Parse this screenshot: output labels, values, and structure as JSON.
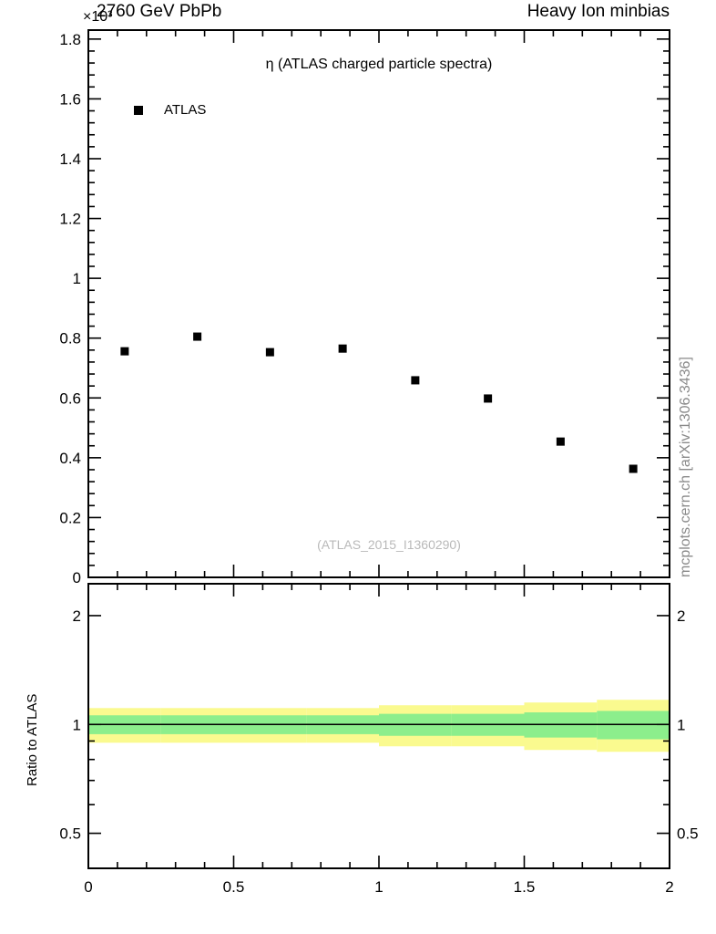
{
  "header": {
    "y_multiplier": "×10³",
    "title_left": "2760 GeV PbPb",
    "title_right": "Heavy Ion minbias"
  },
  "main_plot": {
    "inner_title": "η (ATLAS charged particle spectra)",
    "legend_label": "ATLAS",
    "watermark": "(ATLAS_2015_I1360290)"
  },
  "ratio_plot": {
    "ylabel": "Ratio to ATLAS"
  },
  "side_text": "mcplots.cern.ch [arXiv:1306.3436]",
  "colors": {
    "marker": "#000000",
    "yellow_band": "#fafa8f",
    "green_band": "#8cee8c",
    "frame": "#000000",
    "watermark": "#b9b9b9",
    "side_text": "#8a8a8a"
  },
  "chart_data": [
    {
      "type": "scatter",
      "title": "η (ATLAS charged particle spectra)",
      "xlabel": "η",
      "ylabel": "",
      "y_units_multiplier": "×10³",
      "xlim": [
        0,
        2
      ],
      "ylim": [
        0,
        1.83
      ],
      "xticks": [
        0,
        0.5,
        1,
        1.5,
        2
      ],
      "yticks": [
        0,
        0.2,
        0.4,
        0.6,
        0.8,
        1,
        1.2,
        1.4,
        1.6,
        1.8
      ],
      "x_minor_step": 0.1,
      "y_minor_step": 0.04,
      "grid": false,
      "legend_position": "top-left",
      "series": [
        {
          "name": "ATLAS",
          "marker": "filled-square",
          "color": "#000000",
          "x": [
            0.125,
            0.375,
            0.625,
            0.875,
            1.125,
            1.375,
            1.625,
            1.875
          ],
          "y": [
            0.756,
            0.805,
            0.753,
            0.765,
            0.659,
            0.598,
            0.454,
            0.363
          ]
        }
      ]
    },
    {
      "type": "ratio-band",
      "ylabel": "Ratio to ATLAS",
      "yscale": "log",
      "xlim": [
        0,
        2
      ],
      "ylim": [
        0.4,
        2.45
      ],
      "xticks": [
        0,
        0.5,
        1,
        1.5,
        2
      ],
      "yticks": [
        0.5,
        1,
        2
      ],
      "y_minor_ticks": [
        0.4,
        0.6,
        0.7,
        0.8,
        0.9
      ],
      "reference_line": 1,
      "bands": [
        {
          "x0": 0.0,
          "x1": 0.25,
          "yellow": [
            0.89,
            1.11
          ],
          "green": [
            0.94,
            1.06
          ]
        },
        {
          "x0": 0.25,
          "x1": 0.5,
          "yellow": [
            0.89,
            1.11
          ],
          "green": [
            0.94,
            1.06
          ]
        },
        {
          "x0": 0.5,
          "x1": 0.75,
          "yellow": [
            0.89,
            1.11
          ],
          "green": [
            0.94,
            1.06
          ]
        },
        {
          "x0": 0.75,
          "x1": 1.0,
          "yellow": [
            0.89,
            1.11
          ],
          "green": [
            0.94,
            1.06
          ]
        },
        {
          "x0": 1.0,
          "x1": 1.25,
          "yellow": [
            0.87,
            1.13
          ],
          "green": [
            0.93,
            1.07
          ]
        },
        {
          "x0": 1.25,
          "x1": 1.5,
          "yellow": [
            0.87,
            1.13
          ],
          "green": [
            0.93,
            1.07
          ]
        },
        {
          "x0": 1.5,
          "x1": 1.75,
          "yellow": [
            0.85,
            1.15
          ],
          "green": [
            0.92,
            1.08
          ]
        },
        {
          "x0": 1.75,
          "x1": 2.0,
          "yellow": [
            0.84,
            1.17
          ],
          "green": [
            0.91,
            1.09
          ]
        }
      ]
    }
  ]
}
